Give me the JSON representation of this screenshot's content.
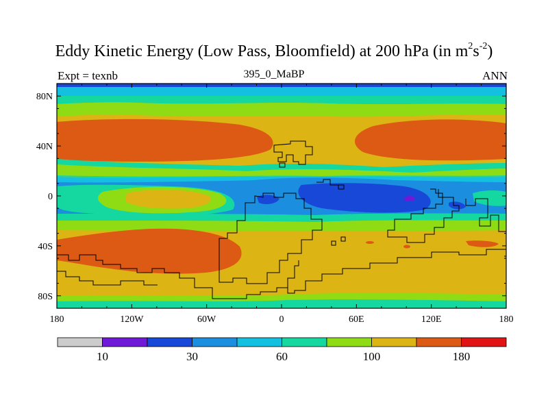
{
  "chart_data": {
    "type": "contour-map",
    "title_main": "Eddy Kinetic Energy (Low Pass, Bloomfield) at 200 hPa (in m",
    "title_sup1": "2",
    "title_mid": "s",
    "title_sup2": "-2",
    "title_end": ")",
    "left_label": "Expt = texnb",
    "center_label": "395_0_MaBP",
    "right_label": "ANN",
    "lon_range": [
      -180,
      180
    ],
    "lat_range": [
      -90,
      90
    ],
    "x_ticks": [
      {
        "value": -180,
        "label": "180"
      },
      {
        "value": -120,
        "label": "120W"
      },
      {
        "value": -60,
        "label": "60W"
      },
      {
        "value": 0,
        "label": "0"
      },
      {
        "value": 60,
        "label": "60E"
      },
      {
        "value": 120,
        "label": "120E"
      },
      {
        "value": 180,
        "label": "180"
      }
    ],
    "y_ticks": [
      {
        "value": 80,
        "label": "80N"
      },
      {
        "value": 40,
        "label": "40N"
      },
      {
        "value": 0,
        "label": "0"
      },
      {
        "value": -40,
        "label": "40S"
      },
      {
        "value": -80,
        "label": "80S"
      }
    ],
    "levels": [
      10,
      20,
      30,
      45,
      60,
      80,
      100,
      140,
      180
    ],
    "colorbar_colors": [
      "#cccccc",
      "#6f1ad6",
      "#1848d8",
      "#1c8ee0",
      "#14c0e0",
      "#14d8a0",
      "#90dc14",
      "#dcb414",
      "#dc5a14",
      "#e01414"
    ],
    "colorbar_labels": [
      {
        "index": 1,
        "label": "10"
      },
      {
        "index": 3,
        "label": "30"
      },
      {
        "index": 5,
        "label": "60"
      },
      {
        "index": 7,
        "label": "100"
      },
      {
        "index": 9,
        "label": "180"
      }
    ],
    "value_bands": [
      {
        "lat_from": 90,
        "lat_to": 78,
        "band": "blue",
        "value": 45
      },
      {
        "lat_from": 78,
        "lat_to": 70,
        "band": "green",
        "value": 70
      },
      {
        "lat_from": 70,
        "lat_to": 60,
        "band": "yellow-green",
        "value": 90
      },
      {
        "lat_from": 60,
        "lat_to": 27,
        "band": "yellow / orange core",
        "value": 150
      },
      {
        "lat_from": 27,
        "lat_to": 18,
        "band": "green",
        "value": 85
      },
      {
        "lat_from": 18,
        "lat_to": 5,
        "band": "cyan",
        "value": 55
      },
      {
        "lat_from": 5,
        "lat_to": -12,
        "band": "cyan / blue minimum over Indian Ocean",
        "value": 30
      },
      {
        "lat_from": -12,
        "lat_to": -22,
        "band": "green",
        "value": 80
      },
      {
        "lat_from": -22,
        "lat_to": -82,
        "band": "yellow / orange core",
        "value": 150
      },
      {
        "lat_from": -82,
        "lat_to": -90,
        "band": "green",
        "value": 80
      }
    ]
  }
}
